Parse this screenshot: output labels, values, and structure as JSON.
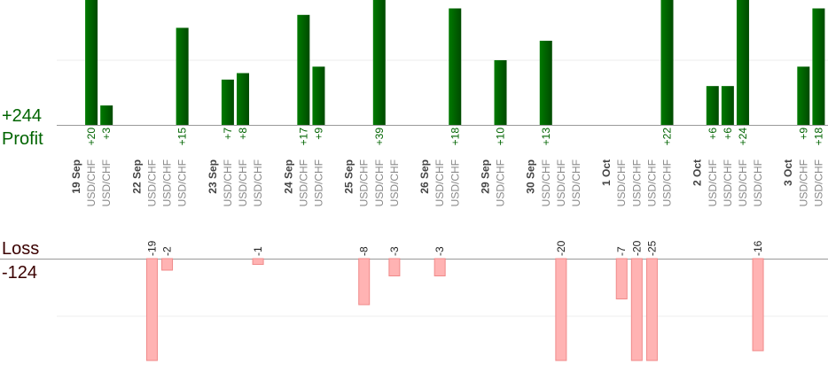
{
  "chart_data": {
    "type": "profit-loss-bar",
    "profit": {
      "label": "Profit",
      "total": 244,
      "total_label": "+244",
      "color": "#006400",
      "ylim": [
        0,
        19.3
      ],
      "yticks": [
        10
      ]
    },
    "loss": {
      "label": "Loss",
      "total": -124,
      "color": "#ffb3b3",
      "ylim": [
        0,
        -17.7
      ],
      "yticks": [
        -10
      ]
    },
    "groups": [
      {
        "date": "19 Sep",
        "trades": [
          {
            "symbol": "USD/CHF",
            "value": 20,
            "value_label": "+20"
          },
          {
            "symbol": "USD/CHF",
            "value": 3,
            "value_label": "+3"
          }
        ]
      },
      {
        "date": "22 Sep",
        "trades": [
          {
            "symbol": "USD/CHF",
            "value": -19
          },
          {
            "symbol": "USD/CHF",
            "value": -2
          },
          {
            "symbol": "USD/CHF",
            "value": 15,
            "value_label": "+15"
          }
        ]
      },
      {
        "date": "23 Sep",
        "trades": [
          {
            "symbol": "USD/CHF",
            "value": 7,
            "value_label": "+7"
          },
          {
            "symbol": "USD/CHF",
            "value": 8,
            "value_label": "+8"
          },
          {
            "symbol": "USD/CHF",
            "value": -1
          }
        ]
      },
      {
        "date": "24 Sep",
        "trades": [
          {
            "symbol": "USD/CHF",
            "value": 17,
            "value_label": "+17"
          },
          {
            "symbol": "USD/CHF",
            "value": 9,
            "value_label": "+9"
          }
        ]
      },
      {
        "date": "25 Sep",
        "trades": [
          {
            "symbol": "USD/CHF",
            "value": -8
          },
          {
            "symbol": "USD/CHF",
            "value": 39,
            "value_label": "+39"
          },
          {
            "symbol": "USD/CHF",
            "value": -3
          }
        ]
      },
      {
        "date": "26 Sep",
        "trades": [
          {
            "symbol": "USD/CHF",
            "value": -3
          },
          {
            "symbol": "USD/CHF",
            "value": 18,
            "value_label": "+18"
          }
        ]
      },
      {
        "date": "29 Sep",
        "trades": [
          {
            "symbol": "USD/CHF",
            "value": 10,
            "value_label": "+10"
          }
        ]
      },
      {
        "date": "30 Sep",
        "trades": [
          {
            "symbol": "USD/CHF",
            "value": 13,
            "value_label": "+13"
          },
          {
            "symbol": "USD/CHF",
            "value": -20
          },
          {
            "symbol": "USD/CHF",
            "value": null
          }
        ]
      },
      {
        "date": "1 Oct",
        "trades": [
          {
            "symbol": "USD/CHF",
            "value": -7
          },
          {
            "symbol": "USD/CHF",
            "value": -20
          },
          {
            "symbol": "USD/CHF",
            "value": -25
          },
          {
            "symbol": "USD/CHF",
            "value": 22,
            "value_label": "+22"
          }
        ]
      },
      {
        "date": "2 Oct",
        "trades": [
          {
            "symbol": "USD/CHF",
            "value": 6,
            "value_label": "+6"
          },
          {
            "symbol": "USD/CHF",
            "value": 6,
            "value_label": "+6"
          },
          {
            "symbol": "USD/CHF",
            "value": 24,
            "value_label": "+24"
          },
          {
            "symbol": "USD/CHF",
            "value": -16
          }
        ]
      },
      {
        "date": "3 Oct",
        "trades": [
          {
            "symbol": "USD/CHF",
            "value": 9,
            "value_label": "+9"
          },
          {
            "symbol": "USD/CHF",
            "value": 18,
            "value_label": "+18"
          }
        ]
      }
    ]
  }
}
